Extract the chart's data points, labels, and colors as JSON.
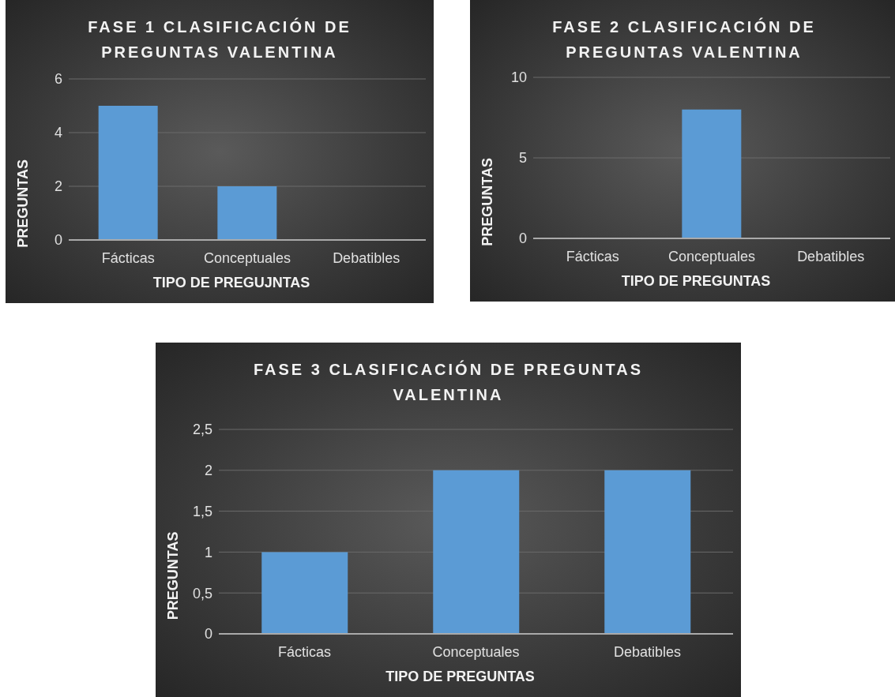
{
  "chart_data": [
    {
      "type": "bar",
      "title": "FASE 1 CLASIFICACIÓN DE PREGUNTAS VALENTINA",
      "xlabel": "TIPO DE PREGUJNTAS",
      "ylabel": "PREGUNTAS",
      "categories": [
        "Fácticas",
        "Conceptuales",
        "Debatibles"
      ],
      "values": [
        5,
        2,
        0
      ],
      "color": "#5b9bd5",
      "ylim": [
        0,
        6
      ],
      "yticks": [
        0,
        2,
        4,
        6
      ],
      "grid": "y"
    },
    {
      "type": "bar",
      "title": "FASE 2 CLASIFICACIÓN DE PREGUNTAS VALENTINA",
      "xlabel": "TIPO DE PREGUNTAS",
      "ylabel": "PREGUNTAS",
      "categories": [
        "Fácticas",
        "Conceptuales",
        "Debatibles"
      ],
      "values": [
        0,
        8,
        0
      ],
      "color": "#5b9bd5",
      "ylim": [
        0,
        10
      ],
      "yticks": [
        0,
        5,
        10
      ],
      "grid": "y"
    },
    {
      "type": "bar",
      "title": "FASE 3 CLASIFICACIÓN DE PREGUNTAS VALENTINA",
      "xlabel": "TIPO DE PREGUNTAS",
      "ylabel": "PREGUNTAS",
      "categories": [
        "Fácticas",
        "Conceptuales",
        "Debatibles"
      ],
      "values": [
        1,
        2,
        2
      ],
      "color": "#5b9bd5",
      "ylim": [
        0,
        2.5
      ],
      "yticks": [
        0,
        {
          "value": 0.5,
          "label": "0,5"
        },
        1,
        {
          "value": 1.5,
          "label": "1,5"
        },
        2,
        {
          "value": 2.5,
          "label": "2,5"
        }
      ],
      "grid": "y"
    }
  ]
}
